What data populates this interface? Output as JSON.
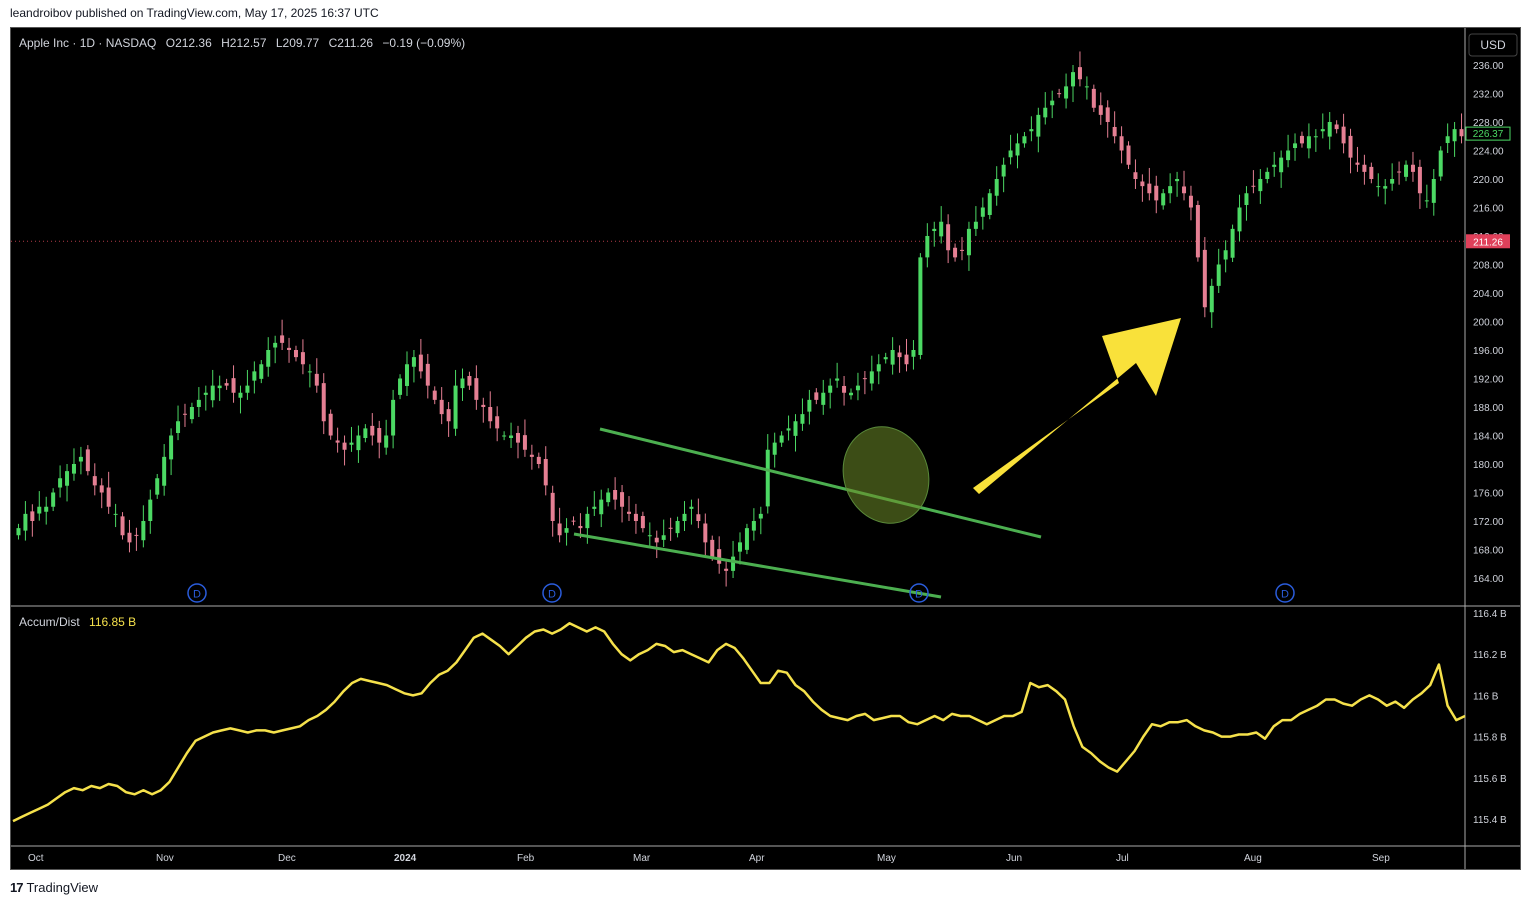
{
  "header": {
    "published": "leandroibov published on TradingView.com, May 17, 2025 16:37 UTC"
  },
  "legend": {
    "symbol": "Apple Inc · 1D · NASDAQ",
    "o": "O212.36",
    "h": "H212.57",
    "l": "L209.77",
    "c": "C211.26",
    "chg": "−0.19 (−0.09%)"
  },
  "currency_button": "USD",
  "price_labels": {
    "last_green": "226.37",
    "last_red": "211.26"
  },
  "indicator": {
    "name": "Accum/Dist",
    "value": "116.85 B"
  },
  "footer": {
    "brand": "TradingView"
  },
  "colors": {
    "up": "#4cd964",
    "down": "#e57f93",
    "ad_line": "#f5e14b",
    "trendline": "#4caf50",
    "arrow": "#f9e13a",
    "dividend_badge": "#2a5cdb"
  },
  "chart_data": [
    {
      "type": "candlestick",
      "title": "Apple Inc · 1D · NASDAQ",
      "x_ticks": [
        "Oct",
        "Nov",
        "Dec",
        "2024",
        "Feb",
        "Mar",
        "Apr",
        "May",
        "Jun",
        "Jul",
        "Aug",
        "Sep"
      ],
      "y_ticks": [
        "236.00",
        "232.00",
        "228.00",
        "224.00",
        "220.00",
        "216.00",
        "212.00",
        "208.00",
        "204.00",
        "200.00",
        "196.00",
        "192.00",
        "188.00",
        "184.00",
        "180.00",
        "176.00",
        "172.00",
        "168.00",
        "164.00"
      ],
      "ylim": [
        161.5,
        238
      ],
      "last_close": 211.26,
      "dividend_markers": [
        "D",
        "D",
        "D",
        "D"
      ],
      "series": [
        {
          "name": "AAPL close (approx.)",
          "values": [
            171,
            173,
            172,
            174,
            174,
            176,
            178,
            179,
            180,
            181,
            179,
            177,
            176,
            174,
            173,
            170,
            169,
            170,
            172,
            175,
            178,
            181,
            184,
            186,
            187,
            188,
            189,
            190,
            191,
            191,
            191,
            190,
            190,
            191,
            193,
            194,
            196,
            197,
            197,
            196,
            195,
            194,
            193,
            191,
            186,
            184,
            183,
            182,
            183,
            184,
            185,
            184,
            183,
            184,
            189,
            192,
            194,
            195,
            193,
            191,
            189,
            187,
            186,
            191,
            192,
            191,
            189,
            188,
            186,
            185,
            184,
            184,
            183,
            182,
            181,
            180,
            177,
            172,
            170,
            171,
            172,
            171,
            173,
            174,
            175,
            176,
            175,
            174,
            173,
            172,
            171,
            170,
            169,
            170,
            171,
            172,
            173,
            174,
            172,
            169,
            167,
            166,
            165,
            167,
            169,
            171,
            172,
            173,
            182,
            183,
            184,
            185,
            186,
            187,
            189,
            189,
            190,
            191,
            192,
            190,
            190,
            191,
            192,
            193,
            194,
            195,
            196,
            195,
            194,
            196,
            209,
            212,
            213,
            214,
            210,
            209,
            210,
            213,
            214,
            216,
            218,
            220,
            222,
            224,
            225,
            226,
            227,
            229,
            230,
            231,
            232,
            233,
            235,
            234,
            233,
            230,
            229,
            228,
            226,
            224,
            222,
            220,
            219,
            218,
            217,
            218,
            219,
            220,
            218,
            216,
            209,
            202,
            205,
            208,
            210,
            213,
            216,
            218,
            219,
            220,
            221,
            222,
            223,
            224,
            225,
            225,
            226,
            226,
            227,
            228,
            227,
            225,
            223,
            222,
            221,
            220,
            219,
            219,
            220,
            221,
            222,
            221,
            218,
            217,
            220,
            224,
            226,
            227,
            226
          ]
        }
      ],
      "annotations": [
        "descending channel (two green trendlines)",
        "green ellipse breakout highlight",
        "yellow up arrow"
      ]
    },
    {
      "type": "line",
      "title": "Accum/Dist",
      "y_ticks": [
        "116.4 B",
        "116.2 B",
        "116 B",
        "115.8 B",
        "115.6 B",
        "115.4 B"
      ],
      "ylim": [
        115.33,
        116.43
      ],
      "series": [
        {
          "name": "Accum/Dist",
          "values": [
            115.39,
            115.41,
            115.43,
            115.45,
            115.47,
            115.5,
            115.53,
            115.55,
            115.54,
            115.56,
            115.55,
            115.57,
            115.56,
            115.53,
            115.52,
            115.54,
            115.52,
            115.54,
            115.58,
            115.65,
            115.72,
            115.78,
            115.8,
            115.82,
            115.83,
            115.84,
            115.83,
            115.82,
            115.83,
            115.83,
            115.82,
            115.83,
            115.84,
            115.85,
            115.88,
            115.9,
            115.93,
            115.97,
            116.02,
            116.06,
            116.08,
            116.07,
            116.06,
            116.05,
            116.03,
            116.01,
            116,
            116.01,
            116.06,
            116.1,
            116.12,
            116.16,
            116.22,
            116.28,
            116.3,
            116.27,
            116.24,
            116.2,
            116.24,
            116.28,
            116.31,
            116.32,
            116.3,
            116.32,
            116.35,
            116.33,
            116.31,
            116.33,
            116.31,
            116.25,
            116.2,
            116.17,
            116.2,
            116.22,
            116.25,
            116.24,
            116.21,
            116.22,
            116.2,
            116.18,
            116.16,
            116.22,
            116.25,
            116.23,
            116.18,
            116.12,
            116.06,
            116.06,
            116.12,
            116.11,
            116.05,
            116.02,
            115.97,
            115.93,
            115.9,
            115.89,
            115.88,
            115.9,
            115.91,
            115.88,
            115.89,
            115.9,
            115.9,
            115.87,
            115.86,
            115.88,
            115.9,
            115.88,
            115.91,
            115.9,
            115.9,
            115.88,
            115.86,
            115.88,
            115.9,
            115.9,
            115.92,
            116.06,
            116.04,
            116.05,
            116.02,
            115.98,
            115.85,
            115.75,
            115.72,
            115.68,
            115.65,
            115.63,
            115.68,
            115.73,
            115.8,
            115.86,
            115.85,
            115.87,
            115.87,
            115.88,
            115.85,
            115.83,
            115.82,
            115.8,
            115.8,
            115.81,
            115.81,
            115.82,
            115.79,
            115.85,
            115.88,
            115.88,
            115.91,
            115.93,
            115.95,
            115.98,
            115.98,
            115.96,
            115.95,
            115.98,
            116,
            115.98,
            115.95,
            115.97,
            115.94,
            115.98,
            116.01,
            116.05,
            116.15,
            115.95,
            115.88,
            115.9
          ]
        }
      ]
    }
  ]
}
